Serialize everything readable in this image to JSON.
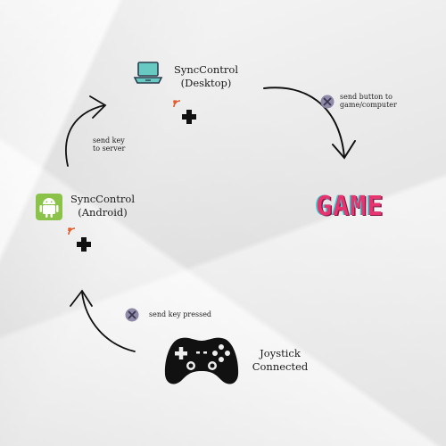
{
  "nodes": {
    "desktop": {
      "line1": "SyncControl",
      "line2": "(Desktop)"
    },
    "android": {
      "line1": "SyncControl",
      "line2": "(Android)"
    },
    "joystick": {
      "line1": "Joystick",
      "line2": "Connected"
    },
    "game": {
      "label": "GAME"
    }
  },
  "edges": {
    "to_server": {
      "line1": "send key",
      "line2": "to server"
    },
    "to_game": {
      "line1": "send button to",
      "line2": "game/computer"
    },
    "key_pressed": {
      "label": "send key pressed"
    }
  },
  "colors": {
    "game_pink": "#e7336e",
    "game_cyan": "#2ad4d4",
    "android_green": "#8bc34a",
    "laptop_teal": "#67c9c1"
  }
}
